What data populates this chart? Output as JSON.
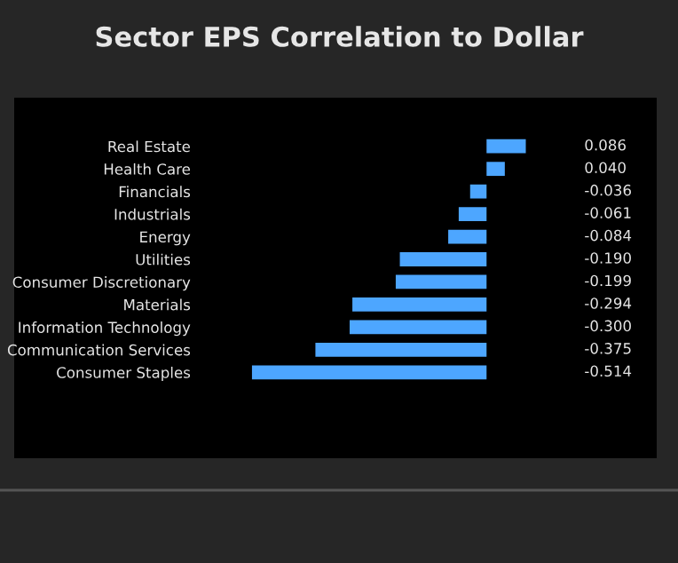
{
  "chart_data": {
    "type": "bar",
    "orientation": "horizontal",
    "title": "Sector EPS Correlation to Dollar",
    "categories": [
      "Real Estate",
      "Health Care",
      "Financials",
      "Industrials",
      "Energy",
      "Utilities",
      "Consumer Discretionary",
      "Materials",
      "Information Technology",
      "Communication Services",
      "Consumer Staples"
    ],
    "values": [
      0.086,
      0.04,
      -0.036,
      -0.061,
      -0.084,
      -0.19,
      -0.199,
      -0.294,
      -0.3,
      -0.375,
      -0.514
    ],
    "value_labels": [
      "0.086",
      "0.040",
      "-0.036",
      "-0.061",
      "-0.084",
      "-0.190",
      "-0.199",
      "-0.294",
      "-0.300",
      "-0.375",
      "-0.514"
    ],
    "color": "#4da6ff",
    "grid": false,
    "legend": false
  }
}
